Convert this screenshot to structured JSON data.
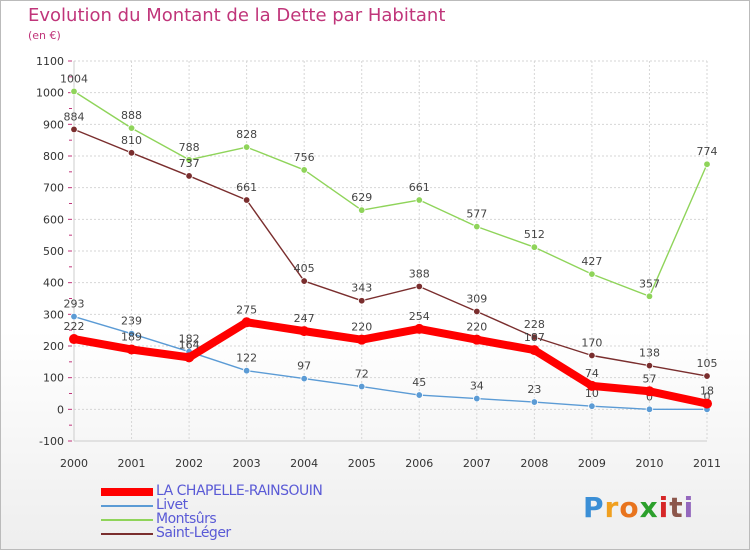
{
  "chart_data": {
    "type": "line",
    "title": "Evolution du Montant de la Dette par Habitant",
    "subtitle": "(en €)",
    "x": [
      "2000",
      "2001",
      "2002",
      "2003",
      "2004",
      "2005",
      "2006",
      "2007",
      "2008",
      "2009",
      "2010",
      "2011"
    ],
    "ylim": [
      -100,
      1100
    ],
    "yticks": [
      "-100",
      "0",
      "100",
      "200",
      "300",
      "400",
      "500",
      "600",
      "700",
      "800",
      "900",
      "1000",
      "1100"
    ],
    "grid": true,
    "legend_position": "bottom-left",
    "series": [
      {
        "name": "LA CHAPELLE-RAINSOUIN",
        "color": "#ff0000",
        "values": [
          222,
          189,
          164,
          275,
          247,
          220,
          254,
          220,
          187,
          74,
          57,
          18
        ],
        "labels": [
          "222",
          "189",
          "164",
          "275",
          "247",
          "220",
          "254",
          "220",
          "187",
          "74",
          "57",
          "18"
        ]
      },
      {
        "name": "Livet",
        "color": "#5b9bd5",
        "values": [
          293,
          239,
          182,
          122,
          97,
          72,
          45,
          34,
          23,
          10,
          0,
          0
        ],
        "labels": [
          "293",
          "239",
          "182",
          "122",
          "97",
          "72",
          "45",
          "34",
          "23",
          "10",
          "0",
          "0"
        ]
      },
      {
        "name": "Montsûrs",
        "color": "#8fd45a",
        "values": [
          1004,
          888,
          788,
          828,
          756,
          629,
          661,
          577,
          512,
          427,
          357,
          774
        ],
        "labels": [
          "1004",
          "888",
          "788",
          "828",
          "756",
          "629",
          "661",
          "577",
          "512",
          "427",
          "357",
          "774"
        ]
      },
      {
        "name": "Saint-Léger",
        "color": "#7a2e2e",
        "values": [
          884,
          810,
          737,
          661,
          405,
          343,
          388,
          309,
          228,
          170,
          138,
          105
        ],
        "labels": [
          "884",
          "810",
          "737",
          "661",
          "405",
          "343",
          "388",
          "309",
          "228",
          "170",
          "138",
          "105"
        ]
      }
    ]
  },
  "legend": {
    "items": [
      {
        "label": "LA CHAPELLE-RAINSOUIN",
        "color": "#ff0000"
      },
      {
        "label": "Livet",
        "color": "#5b9bd5"
      },
      {
        "label": "Montsûrs",
        "color": "#8fd45a"
      },
      {
        "label": "Saint-Léger",
        "color": "#7a2e2e"
      }
    ]
  },
  "brand": {
    "logo_letters": [
      "P",
      "r",
      "o",
      "x",
      "i",
      "t",
      "i"
    ],
    "logo_colors": [
      "#3b8fd6",
      "#f0a020",
      "#e8741e",
      "#2ca02c",
      "#d62728",
      "#8c564b",
      "#9467bd"
    ]
  }
}
